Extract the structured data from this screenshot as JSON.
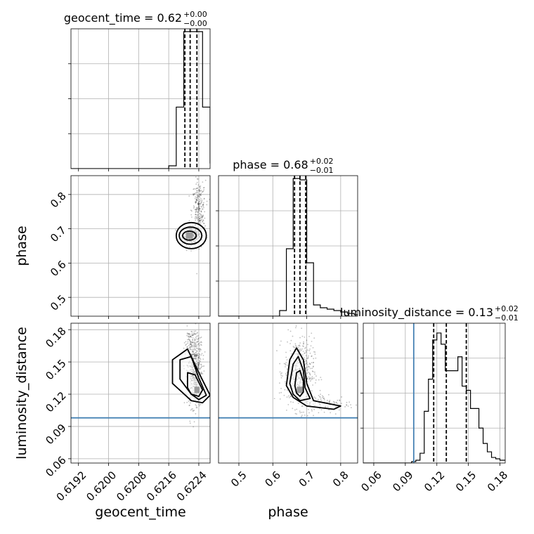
{
  "chart_data": {
    "type": "corner",
    "parameters": [
      "geocent_time",
      "phase",
      "luminosity_distance"
    ],
    "injection": {
      "luminosity_distance": 0.098
    },
    "colors": {
      "hist": "#000000",
      "injection": "#4682b4",
      "grid": "#b0b0b0",
      "contour": "#000000"
    },
    "panels": [
      {
        "id": "hist-geocent-time",
        "type": "histogram",
        "param": "geocent_time",
        "title_main": "geocent_time = 0.62",
        "title_sup": "+0.00",
        "title_sub": "−0.00",
        "xlim": [
          0.619,
          0.6227
        ],
        "xticks": [
          0.6192,
          0.62,
          0.6208,
          0.6216,
          0.6224
        ],
        "ylim": [
          0,
          1
        ],
        "bins": [
          [
            0.619,
            0.6216,
            0.0
          ],
          [
            0.6216,
            0.6218,
            0.02
          ],
          [
            0.6218,
            0.622,
            0.44
          ],
          [
            0.622,
            0.6221,
            0.98
          ],
          [
            0.6221,
            0.6223,
            0.98
          ],
          [
            0.6223,
            0.6225,
            0.98
          ],
          [
            0.6225,
            0.6227,
            0.44
          ],
          [
            0.6227,
            0.6229,
            0.04
          ]
        ],
        "quantiles": [
          0.62203,
          0.62217,
          0.62235
        ]
      },
      {
        "id": "hist-phase",
        "type": "histogram",
        "param": "phase",
        "title_main": "phase = 0.68",
        "title_sup": "+0.02",
        "title_sub": "−0.01",
        "xlim": [
          0.44,
          0.85
        ],
        "xticks": [
          0.5,
          0.6,
          0.7,
          0.8
        ],
        "ylim": [
          0,
          1
        ],
        "bins": [
          [
            0.44,
            0.62,
            0.0
          ],
          [
            0.62,
            0.64,
            0.04
          ],
          [
            0.64,
            0.66,
            0.48
          ],
          [
            0.66,
            0.68,
            0.98
          ],
          [
            0.68,
            0.7,
            0.97
          ],
          [
            0.7,
            0.72,
            0.38
          ],
          [
            0.72,
            0.74,
            0.08
          ],
          [
            0.74,
            0.76,
            0.06
          ],
          [
            0.76,
            0.78,
            0.05
          ],
          [
            0.78,
            0.8,
            0.04
          ],
          [
            0.8,
            0.82,
            0.03
          ],
          [
            0.82,
            0.84,
            0.02
          ],
          [
            0.84,
            0.86,
            0.01
          ]
        ],
        "quantiles": [
          0.664,
          0.68,
          0.697
        ]
      },
      {
        "id": "hist-luminosity-distance",
        "type": "histogram",
        "param": "luminosity_distance",
        "title_main": "luminosity_distance = 0.13",
        "title_sup": "+0.02",
        "title_sub": "−0.01",
        "xlim": [
          0.05,
          0.185
        ],
        "xticks": [
          0.06,
          0.09,
          0.12,
          0.15,
          0.18
        ],
        "ylim": [
          0,
          1
        ],
        "bins": [
          [
            0.05,
            0.096,
            0.0
          ],
          [
            0.096,
            0.1,
            0.01
          ],
          [
            0.1,
            0.104,
            0.02
          ],
          [
            0.104,
            0.108,
            0.07
          ],
          [
            0.108,
            0.112,
            0.37
          ],
          [
            0.112,
            0.116,
            0.6
          ],
          [
            0.116,
            0.12,
            0.88
          ],
          [
            0.12,
            0.124,
            0.93
          ],
          [
            0.124,
            0.128,
            0.85
          ],
          [
            0.128,
            0.132,
            0.66
          ],
          [
            0.132,
            0.136,
            0.66
          ],
          [
            0.136,
            0.14,
            0.66
          ],
          [
            0.14,
            0.144,
            0.76
          ],
          [
            0.144,
            0.148,
            0.55
          ],
          [
            0.148,
            0.152,
            0.52
          ],
          [
            0.152,
            0.156,
            0.39
          ],
          [
            0.156,
            0.16,
            0.39
          ],
          [
            0.16,
            0.164,
            0.25
          ],
          [
            0.164,
            0.168,
            0.14
          ],
          [
            0.168,
            0.172,
            0.08
          ],
          [
            0.172,
            0.176,
            0.04
          ],
          [
            0.176,
            0.18,
            0.03
          ],
          [
            0.18,
            0.185,
            0.02
          ]
        ],
        "quantiles": [
          0.117,
          0.129,
          0.148
        ],
        "injection_x": 0.098
      },
      {
        "id": "scatter-phase-vs-geocent-time",
        "type": "density",
        "xparam": "geocent_time",
        "yparam": "phase",
        "xlim": [
          0.619,
          0.6227
        ],
        "ylim": [
          0.445,
          0.855
        ],
        "yticks": [
          0.5,
          0.6,
          0.7,
          0.8
        ],
        "ylabel": "phase",
        "cloud": [
          {
            "cx": 0.6222,
            "cy": 0.681,
            "sx": 0.00012,
            "sy": 0.013,
            "n": 380
          },
          {
            "cx": 0.6224,
            "cy": 0.75,
            "sx": 9e-05,
            "sy": 0.045,
            "n": 260
          }
        ],
        "core": {
          "cx": 0.62215,
          "cy": 0.68,
          "w": 0.00018,
          "h": 0.018
        },
        "contours": [
          {
            "cx": 0.6222,
            "cy": 0.68,
            "rx": 0.0004,
            "ry": 0.038
          },
          {
            "cx": 0.62218,
            "cy": 0.68,
            "rx": 0.0003,
            "ry": 0.025
          },
          {
            "cx": 0.62215,
            "cy": 0.68,
            "rx": 0.00018,
            "ry": 0.013
          }
        ]
      },
      {
        "id": "scatter-distance-vs-geocent-time",
        "type": "density",
        "xparam": "geocent_time",
        "yparam": "luminosity_distance",
        "xlim": [
          0.619,
          0.6227
        ],
        "ylim": [
          0.056,
          0.186
        ],
        "xticks": [
          0.6192,
          0.62,
          0.6208,
          0.6216,
          0.6224
        ],
        "yticks": [
          0.06,
          0.09,
          0.12,
          0.15,
          0.18
        ],
        "xlabel": "geocent_time",
        "ylabel": "luminosity_distance",
        "injection_y": 0.098,
        "cloud": [
          {
            "cx": 0.6223,
            "cy": 0.14,
            "sx": 0.0001,
            "sy": 0.016,
            "n": 520
          },
          {
            "cx": 0.6222,
            "cy": 0.17,
            "sx": 0.0001,
            "sy": 0.006,
            "n": 80
          }
        ],
        "core": {
          "cx": 0.62235,
          "cy": 0.124,
          "w": 0.00014,
          "h": 0.006
        },
        "contours": [
          {
            "pts": [
              [
                0.6217,
                0.13
              ],
              [
                0.6217,
                0.152
              ],
              [
                0.6221,
                0.162
              ],
              [
                0.6224,
                0.14
              ],
              [
                0.6227,
                0.119
              ],
              [
                0.6225,
                0.112
              ],
              [
                0.6222,
                0.114
              ]
            ]
          },
          {
            "pts": [
              [
                0.6219,
                0.134
              ],
              [
                0.6219,
                0.152
              ],
              [
                0.6222,
                0.155
              ],
              [
                0.6224,
                0.135
              ],
              [
                0.6226,
                0.119
              ],
              [
                0.6224,
                0.115
              ],
              [
                0.6222,
                0.12
              ]
            ]
          },
          {
            "pts": [
              [
                0.6221,
                0.126
              ],
              [
                0.6221,
                0.14
              ],
              [
                0.6223,
                0.138
              ],
              [
                0.6225,
                0.124
              ],
              [
                0.6224,
                0.118
              ],
              [
                0.6222,
                0.12
              ]
            ]
          }
        ]
      },
      {
        "id": "scatter-distance-vs-phase",
        "type": "density",
        "xparam": "phase",
        "yparam": "luminosity_distance",
        "xlim": [
          0.44,
          0.85
        ],
        "ylim": [
          0.056,
          0.186
        ],
        "xticks": [
          0.5,
          0.6,
          0.7,
          0.8
        ],
        "xlabel": "phase",
        "injection_y": 0.098,
        "cloud": [
          {
            "cx": 0.678,
            "cy": 0.14,
            "sx": 0.022,
            "sy": 0.016,
            "n": 520
          },
          {
            "cx": 0.76,
            "cy": 0.111,
            "sx": 0.04,
            "sy": 0.005,
            "n": 110
          }
        ],
        "core": {
          "cx": 0.68,
          "cy": 0.124,
          "w": 0.018,
          "h": 0.006
        },
        "contours": [
          {
            "pts": [
              [
                0.64,
                0.128
              ],
              [
                0.65,
                0.152
              ],
              [
                0.67,
                0.163
              ],
              [
                0.69,
                0.152
              ],
              [
                0.7,
                0.13
              ],
              [
                0.72,
                0.114
              ],
              [
                0.8,
                0.109
              ],
              [
                0.78,
                0.106
              ],
              [
                0.7,
                0.109
              ],
              [
                0.66,
                0.117
              ]
            ]
          },
          {
            "pts": [
              [
                0.65,
                0.13
              ],
              [
                0.66,
                0.148
              ],
              [
                0.675,
                0.155
              ],
              [
                0.69,
                0.142
              ],
              [
                0.695,
                0.126
              ],
              [
                0.71,
                0.116
              ],
              [
                0.68,
                0.114
              ],
              [
                0.66,
                0.12
              ]
            ]
          },
          {
            "pts": [
              [
                0.665,
                0.128
              ],
              [
                0.67,
                0.14
              ],
              [
                0.68,
                0.142
              ],
              [
                0.69,
                0.132
              ],
              [
                0.69,
                0.122
              ],
              [
                0.68,
                0.118
              ],
              [
                0.67,
                0.121
              ]
            ]
          }
        ]
      }
    ]
  }
}
